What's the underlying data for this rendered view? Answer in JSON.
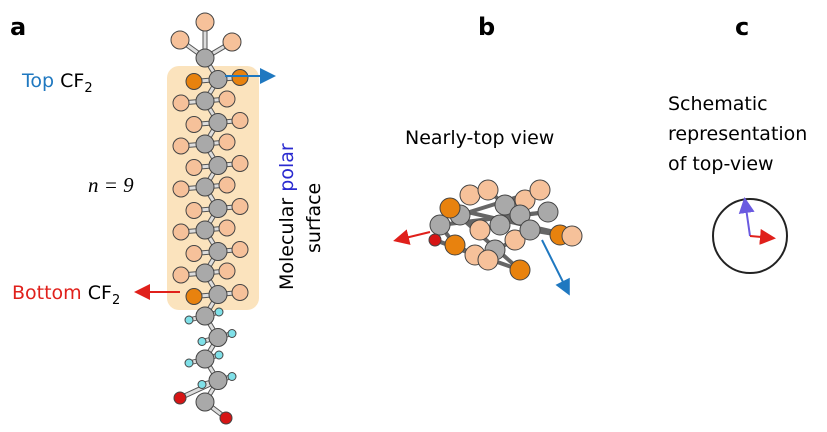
{
  "panel_a": {
    "label": "a",
    "top": {
      "word": "Top",
      "group": "CF",
      "subscript": "2"
    },
    "bottom": {
      "word": "Bottom",
      "group": "CF",
      "subscript": "2"
    },
    "n_label": "n = 9",
    "surface": {
      "first": "Molecular",
      "highlight": "polar",
      "second": "surface"
    }
  },
  "panel_b": {
    "label": "b",
    "caption": "Nearly-top view"
  },
  "panel_c": {
    "label": "c",
    "caption_lines": [
      "Schematic",
      "representation",
      "of top-view"
    ]
  }
}
